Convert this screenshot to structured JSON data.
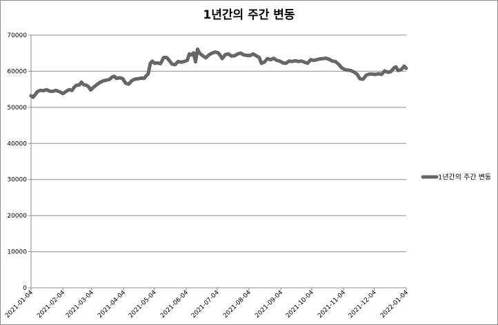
{
  "chart_data": {
    "type": "line",
    "title": "1년간의 주간 변동",
    "xlabel": "",
    "ylabel": "",
    "ylim": [
      0,
      70000
    ],
    "yticks": [
      "0",
      "10000",
      "20000",
      "30000",
      "40000",
      "50000",
      "60000",
      "70000"
    ],
    "xticks": [
      "2021-01-04",
      "2021-02-04",
      "2021-03-04",
      "2021-04-04",
      "2021-05-04",
      "2021-06-04",
      "2021-07-04",
      "2021-08-04",
      "2021-09-04",
      "2021-10-04",
      "2021-11-04",
      "2021-12-04",
      "2022-01-04"
    ],
    "grid": "horizontal",
    "legend_position": "right",
    "series": [
      {
        "name": "1년간의 주간 변동",
        "color": "#666666",
        "points": [
          [
            "2021-01-04",
            53200
          ],
          [
            "2021-01-06",
            52800
          ],
          [
            "2021-01-08",
            53500
          ],
          [
            "2021-01-10",
            54300
          ],
          [
            "2021-01-13",
            54700
          ],
          [
            "2021-01-16",
            54600
          ],
          [
            "2021-01-19",
            54900
          ],
          [
            "2021-01-22",
            54500
          ],
          [
            "2021-01-25",
            54400
          ],
          [
            "2021-01-28",
            54700
          ],
          [
            "2021-02-01",
            54300
          ],
          [
            "2021-02-04",
            53800
          ],
          [
            "2021-02-07",
            54400
          ],
          [
            "2021-02-10",
            54900
          ],
          [
            "2021-02-13",
            54700
          ],
          [
            "2021-02-15",
            55600
          ],
          [
            "2021-02-17",
            56100
          ],
          [
            "2021-02-20",
            56200
          ],
          [
            "2021-02-22",
            57000
          ],
          [
            "2021-02-24",
            56300
          ],
          [
            "2021-02-27",
            56100
          ],
          [
            "2021-03-01",
            55700
          ],
          [
            "2021-03-03",
            54800
          ],
          [
            "2021-03-06",
            55600
          ],
          [
            "2021-03-09",
            56300
          ],
          [
            "2021-03-12",
            56900
          ],
          [
            "2021-03-15",
            57300
          ],
          [
            "2021-03-18",
            57500
          ],
          [
            "2021-03-21",
            57700
          ],
          [
            "2021-03-24",
            58400
          ],
          [
            "2021-03-26",
            58600
          ],
          [
            "2021-03-28",
            58000
          ],
          [
            "2021-03-31",
            58200
          ],
          [
            "2021-04-03",
            58000
          ],
          [
            "2021-04-06",
            56700
          ],
          [
            "2021-04-09",
            56400
          ],
          [
            "2021-04-12",
            57400
          ],
          [
            "2021-04-15",
            57800
          ],
          [
            "2021-04-18",
            57900
          ],
          [
            "2021-04-21",
            58100
          ],
          [
            "2021-04-24",
            58000
          ],
          [
            "2021-04-26",
            58700
          ],
          [
            "2021-04-28",
            59300
          ],
          [
            "2021-04-30",
            62200
          ],
          [
            "2021-05-02",
            62800
          ],
          [
            "2021-05-04",
            62200
          ],
          [
            "2021-05-07",
            62300
          ],
          [
            "2021-05-10",
            62100
          ],
          [
            "2021-05-13",
            63800
          ],
          [
            "2021-05-16",
            63800
          ],
          [
            "2021-05-19",
            62800
          ],
          [
            "2021-05-21",
            62000
          ],
          [
            "2021-05-24",
            61800
          ],
          [
            "2021-05-27",
            62700
          ],
          [
            "2021-05-30",
            62500
          ],
          [
            "2021-06-02",
            62700
          ],
          [
            "2021-06-05",
            63000
          ],
          [
            "2021-06-07",
            64800
          ],
          [
            "2021-06-09",
            64500
          ],
          [
            "2021-06-11",
            65100
          ],
          [
            "2021-06-13",
            62600
          ],
          [
            "2021-06-15",
            66100
          ],
          [
            "2021-06-17",
            65000
          ],
          [
            "2021-06-20",
            64300
          ],
          [
            "2021-06-23",
            63700
          ],
          [
            "2021-06-26",
            64500
          ],
          [
            "2021-06-29",
            65000
          ],
          [
            "2021-07-02",
            65300
          ],
          [
            "2021-07-05",
            65100
          ],
          [
            "2021-07-07",
            64400
          ],
          [
            "2021-07-09",
            63500
          ],
          [
            "2021-07-12",
            64600
          ],
          [
            "2021-07-15",
            64800
          ],
          [
            "2021-07-18",
            64200
          ],
          [
            "2021-07-21",
            64300
          ],
          [
            "2021-07-24",
            64800
          ],
          [
            "2021-07-27",
            65000
          ],
          [
            "2021-07-30",
            64500
          ],
          [
            "2021-08-02",
            64400
          ],
          [
            "2021-08-05",
            64300
          ],
          [
            "2021-08-08",
            64800
          ],
          [
            "2021-08-11",
            64300
          ],
          [
            "2021-08-14",
            63800
          ],
          [
            "2021-08-16",
            62200
          ],
          [
            "2021-08-19",
            62500
          ],
          [
            "2021-08-22",
            63500
          ],
          [
            "2021-08-25",
            63200
          ],
          [
            "2021-08-28",
            63600
          ],
          [
            "2021-08-31",
            63000
          ],
          [
            "2021-09-03",
            62800
          ],
          [
            "2021-09-06",
            62300
          ],
          [
            "2021-09-09",
            62200
          ],
          [
            "2021-09-12",
            62800
          ],
          [
            "2021-09-15",
            62700
          ],
          [
            "2021-09-18",
            62900
          ],
          [
            "2021-09-21",
            62700
          ],
          [
            "2021-09-24",
            62800
          ],
          [
            "2021-09-27",
            62500
          ],
          [
            "2021-09-30",
            62200
          ],
          [
            "2021-10-03",
            63200
          ],
          [
            "2021-10-06",
            63000
          ],
          [
            "2021-10-09",
            63200
          ],
          [
            "2021-10-12",
            63400
          ],
          [
            "2021-10-15",
            63500
          ],
          [
            "2021-10-18",
            63600
          ],
          [
            "2021-10-21",
            63300
          ],
          [
            "2021-10-24",
            62800
          ],
          [
            "2021-10-27",
            62700
          ],
          [
            "2021-10-30",
            62000
          ],
          [
            "2021-11-02",
            61000
          ],
          [
            "2021-11-05",
            60500
          ],
          [
            "2021-11-08",
            60300
          ],
          [
            "2021-11-11",
            60200
          ],
          [
            "2021-11-14",
            59800
          ],
          [
            "2021-11-17",
            59200
          ],
          [
            "2021-11-20",
            57900
          ],
          [
            "2021-11-23",
            57800
          ],
          [
            "2021-11-26",
            58900
          ],
          [
            "2021-11-29",
            59200
          ],
          [
            "2021-12-02",
            59200
          ],
          [
            "2021-12-05",
            59100
          ],
          [
            "2021-12-08",
            59300
          ],
          [
            "2021-12-11",
            59100
          ],
          [
            "2021-12-14",
            60100
          ],
          [
            "2021-12-17",
            59700
          ],
          [
            "2021-12-20",
            59900
          ],
          [
            "2021-12-23",
            60900
          ],
          [
            "2021-12-25",
            61200
          ],
          [
            "2021-12-27",
            60200
          ],
          [
            "2021-12-30",
            60400
          ],
          [
            "2022-01-02",
            61400
          ],
          [
            "2022-01-04",
            60800
          ]
        ]
      }
    ]
  }
}
